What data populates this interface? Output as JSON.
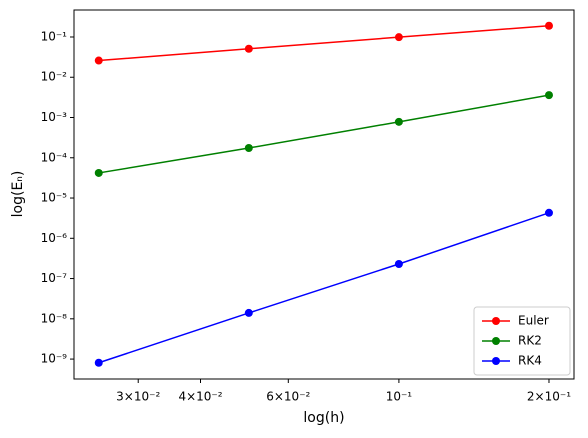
{
  "chart_data": {
    "type": "line",
    "xlabel": "log(h)",
    "ylabel": "log(Eₙ)",
    "x": [
      0.025,
      0.05,
      0.1,
      0.2
    ],
    "series": [
      {
        "name": "Euler",
        "color": "#ff0000",
        "values": [
          0.026,
          0.051,
          0.099,
          0.19
        ]
      },
      {
        "name": "RK2",
        "color": "#008000",
        "values": [
          4.2e-05,
          0.000175,
          0.00078,
          0.0036
        ]
      },
      {
        "name": "RK4",
        "color": "#0000ff",
        "values": [
          8.1e-10,
          1.4e-08,
          2.3e-07,
          4.3e-06
        ]
      }
    ],
    "xscale": "log",
    "yscale": "log",
    "xlim": [
      0.0223,
      0.2245
    ],
    "ylim": [
      3.2e-10,
      0.468
    ],
    "xticks": [
      {
        "value": 0.03,
        "label": "3×10⁻²"
      },
      {
        "value": 0.04,
        "label": "4×10⁻²"
      },
      {
        "value": 0.06,
        "label": "6×10⁻²"
      },
      {
        "value": 0.1,
        "label": "10⁻¹"
      },
      {
        "value": 0.2,
        "label": "2×10⁻¹"
      }
    ],
    "yticks": [
      {
        "value": 1e-09,
        "label": "10⁻⁹"
      },
      {
        "value": 1e-08,
        "label": "10⁻⁸"
      },
      {
        "value": 1e-07,
        "label": "10⁻⁷"
      },
      {
        "value": 1e-06,
        "label": "10⁻⁶"
      },
      {
        "value": 1e-05,
        "label": "10⁻⁵"
      },
      {
        "value": 0.0001,
        "label": "10⁻⁴"
      },
      {
        "value": 0.001,
        "label": "10⁻³"
      },
      {
        "value": 0.01,
        "label": "10⁻²"
      },
      {
        "value": 0.1,
        "label": "10⁻¹"
      }
    ],
    "legend": "lower right",
    "grid": false
  }
}
